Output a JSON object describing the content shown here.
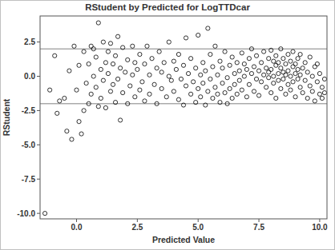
{
  "chart_data": {
    "type": "scatter",
    "title": "RStudent by Predicted for LogTTDcar",
    "x_label": "Predicted Value",
    "y_label": "RStudent",
    "marker": "circle_open",
    "color": "#000000",
    "xlim": [
      -1.5,
      10.3
    ],
    "ylim": [
      -10.4,
      4.4
    ],
    "xticks": [
      {
        "value": 0,
        "label": "0.0"
      },
      {
        "value": 2.5,
        "label": "2.5"
      },
      {
        "value": 5,
        "label": "5.0"
      },
      {
        "value": 7.5,
        "label": "7.5"
      },
      {
        "value": 10,
        "label": "10.0"
      }
    ],
    "yticks": [
      {
        "value": -10,
        "label": "-10.0"
      },
      {
        "value": -7.5,
        "label": "-7.5"
      },
      {
        "value": -5,
        "label": "-5.0"
      },
      {
        "value": -2.5,
        "label": "-2.5"
      },
      {
        "value": 0,
        "label": "0.0"
      },
      {
        "value": 2.5,
        "label": "2.5"
      }
    ],
    "reference_lines": [
      -2,
      2
    ],
    "x": [
      -1.3,
      -1.1,
      -0.9,
      -0.8,
      -0.7,
      -0.5,
      -0.4,
      -0.3,
      -0.2,
      -0.1,
      0.0,
      0.1,
      0.1,
      0.2,
      0.3,
      0.3,
      0.4,
      0.5,
      0.5,
      0.6,
      0.6,
      0.7,
      0.7,
      0.8,
      0.8,
      0.9,
      0.9,
      1.0,
      1.0,
      1.1,
      1.1,
      1.2,
      1.2,
      1.3,
      1.3,
      1.4,
      1.4,
      1.5,
      1.5,
      1.6,
      1.6,
      1.7,
      1.7,
      1.8,
      1.8,
      1.9,
      1.9,
      2.0,
      2.1,
      2.1,
      2.2,
      2.3,
      2.3,
      2.4,
      2.4,
      2.5,
      2.6,
      2.6,
      2.7,
      2.8,
      2.8,
      2.9,
      3.0,
      3.0,
      3.1,
      3.2,
      3.3,
      3.3,
      3.4,
      3.5,
      3.5,
      3.6,
      3.7,
      3.8,
      3.8,
      3.9,
      4.0,
      4.0,
      4.1,
      4.2,
      4.2,
      4.3,
      4.4,
      4.4,
      4.5,
      4.5,
      4.6,
      4.7,
      4.7,
      4.8,
      4.9,
      4.9,
      5.0,
      5.0,
      5.1,
      5.1,
      5.2,
      5.2,
      5.3,
      5.3,
      5.4,
      5.4,
      5.5,
      5.5,
      5.6,
      5.6,
      5.7,
      5.7,
      5.8,
      5.8,
      5.9,
      5.9,
      6.0,
      6.0,
      6.1,
      6.1,
      6.2,
      6.2,
      6.3,
      6.3,
      6.4,
      6.4,
      6.5,
      6.5,
      6.6,
      6.6,
      6.7,
      6.7,
      6.8,
      6.8,
      6.9,
      6.9,
      7.0,
      7.0,
      7.1,
      7.1,
      7.2,
      7.2,
      7.3,
      7.3,
      7.4,
      7.4,
      7.5,
      7.5,
      7.6,
      7.6,
      7.7,
      7.7,
      7.8,
      7.8,
      7.9,
      7.9,
      7.9,
      8.0,
      8.0,
      8.0,
      8.1,
      8.1,
      8.1,
      8.2,
      8.2,
      8.2,
      8.3,
      8.3,
      8.3,
      8.4,
      8.4,
      8.4,
      8.5,
      8.5,
      8.5,
      8.6,
      8.6,
      8.6,
      8.7,
      8.7,
      8.7,
      8.8,
      8.8,
      8.8,
      8.9,
      8.9,
      8.9,
      9.0,
      9.0,
      9.0,
      9.1,
      9.1,
      9.1,
      9.2,
      9.2,
      9.2,
      9.3,
      9.3,
      9.4,
      9.4,
      9.5,
      9.5,
      9.6,
      9.6,
      9.7,
      9.7,
      9.8,
      9.8,
      9.9,
      9.9,
      10.0,
      10.0,
      10.1,
      10.1,
      10.2,
      10.2
    ],
    "values": [
      -10.0,
      -1.0,
      1.5,
      -2.7,
      -1.8,
      -1.6,
      -4.0,
      0.4,
      -4.6,
      2.2,
      -1.0,
      -3.3,
      0.8,
      -4.2,
      -2.5,
      1.8,
      -0.5,
      -2.0,
      0.9,
      2.2,
      -1.3,
      2.0,
      0.0,
      -0.8,
      1.4,
      3.9,
      -2.2,
      0.5,
      -1.6,
      2.5,
      -0.3,
      1.0,
      -2.3,
      0.2,
      1.8,
      -1.1,
      2.4,
      -0.6,
      0.9,
      -1.9,
      1.5,
      2.9,
      -0.2,
      -3.2,
      0.6,
      2.1,
      -1.2,
      0.3,
      -2.0,
      1.2,
      -0.7,
      2.2,
      0.1,
      -1.5,
      1.0,
      0.5,
      -1.0,
      1.6,
      -0.4,
      0.9,
      -1.8,
      2.2,
      0.1,
      -1.3,
      1.3,
      -0.6,
      0.6,
      -2.0,
      1.8,
      -0.9,
      0.3,
      1.0,
      -1.5,
      0.0,
      2.5,
      -0.3,
      1.1,
      -1.1,
      0.5,
      -1.7,
      1.6,
      -0.2,
      0.8,
      -2.1,
      2.8,
      -0.7,
      0.2,
      -1.3,
      1.3,
      -0.4,
      0.6,
      -1.9,
      3.0,
      -0.9,
      0.1,
      -1.5,
      1.0,
      -0.5,
      -2.1,
      0.4,
      3.5,
      -1.1,
      -0.2,
      1.6,
      -1.6,
      0.7,
      -0.8,
      2.2,
      -1.3,
      0.1,
      -1.9,
      1.1,
      -0.5,
      0.6,
      -1.2,
      1.8,
      -0.1,
      -2.0,
      0.8,
      -0.9,
      1.4,
      -1.6,
      0.2,
      -0.6,
      1.0,
      -1.3,
      0.4,
      -0.3,
      1.7,
      -1.0,
      0.0,
      0.9,
      -1.5,
      0.5,
      1.3,
      -0.6,
      0.2,
      2.0,
      -1.1,
      0.7,
      -0.2,
      1.5,
      0.4,
      -1.4,
      1.0,
      -0.4,
      0.1,
      1.8,
      -0.8,
      0.6,
      1.3,
      -0.1,
      0.3,
      1.9,
      -1.2,
      0.5,
      0.0,
      1.1,
      -0.5,
      0.8,
      -1.6,
      1.5,
      0.2,
      -0.3,
      1.0,
      0.6,
      -0.9,
      2.0,
      0.3,
      -0.2,
      1.3,
      0.9,
      -1.3,
      0.1,
      1.6,
      -0.6,
      0.4,
      0.0,
      1.1,
      -1.0,
      0.7,
      -0.4,
      1.8,
      0.2,
      -1.5,
      0.9,
      -0.2,
      1.3,
      0.5,
      -0.8,
      0.1,
      1.6,
      -1.2,
      0.6,
      -0.3,
      1.0,
      -1.6,
      0.3,
      -0.7,
      1.4,
      0.0,
      -1.1,
      0.7,
      -1.8,
      -0.4,
      0.9,
      -1.3,
      0.2,
      -0.8,
      -1.6,
      -0.2,
      -1.2
    ]
  }
}
